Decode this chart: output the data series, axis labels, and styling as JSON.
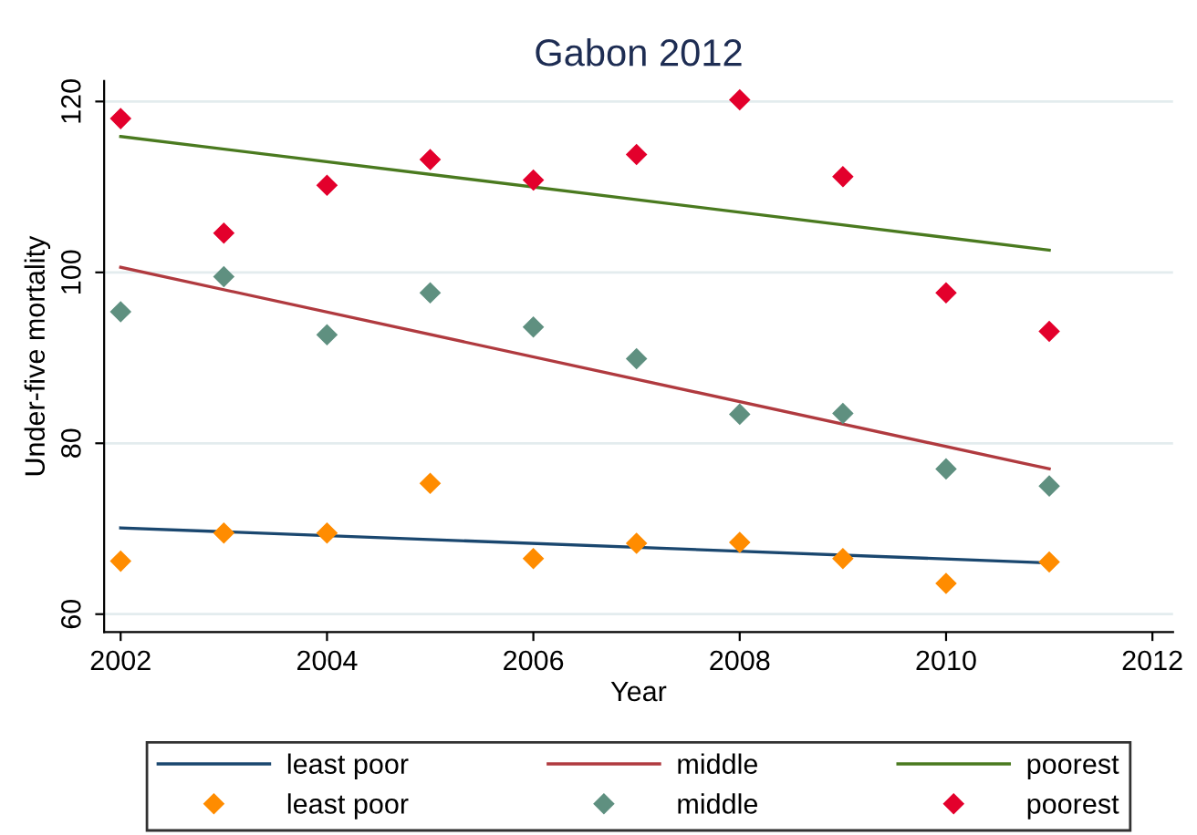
{
  "chart_data": {
    "type": "scatter",
    "title": "Gabon 2012",
    "xlabel": "Year",
    "ylabel": "Under-five mortality",
    "xlim": [
      2001.84,
      2012.2
    ],
    "xticks": [
      2002,
      2004,
      2006,
      2008,
      2010,
      2012
    ],
    "ylim": [
      57.9,
      122.4
    ],
    "yticks": [
      60,
      80,
      100,
      120
    ],
    "grid": "y",
    "legend": "bottom",
    "series": [
      {
        "name": "least poor",
        "type": "line",
        "color": "#1a476f",
        "x": [
          2002,
          2011
        ],
        "values": [
          70.1,
          66.0
        ],
        "marker": "none"
      },
      {
        "name": "middle",
        "type": "line",
        "color": "#b03a3f",
        "x": [
          2002,
          2011
        ],
        "values": [
          100.6,
          77.0
        ],
        "marker": "none"
      },
      {
        "name": "poorest",
        "type": "line",
        "color": "#4a7a1f",
        "x": [
          2002,
          2011
        ],
        "values": [
          115.9,
          102.6
        ],
        "marker": "none"
      },
      {
        "name": "least poor",
        "color": "#ff8c00",
        "marker": "diamond",
        "x": [
          2002,
          2003,
          2004,
          2005,
          2006,
          2007,
          2008,
          2009,
          2010,
          2011
        ],
        "values": [
          66.2,
          69.5,
          69.5,
          75.3,
          66.5,
          68.3,
          68.4,
          66.5,
          63.6,
          66.1
        ]
      },
      {
        "name": "middle",
        "color": "#5f9080",
        "marker": "diamond",
        "x": [
          2002,
          2003,
          2004,
          2005,
          2006,
          2007,
          2008,
          2009,
          2010,
          2011
        ],
        "values": [
          95.4,
          99.5,
          92.7,
          97.6,
          93.6,
          89.9,
          83.4,
          83.5,
          77.0,
          75.0
        ]
      },
      {
        "name": "poorest",
        "color": "#e3002c",
        "marker": "diamond",
        "x": [
          2002,
          2003,
          2004,
          2005,
          2006,
          2007,
          2008,
          2009,
          2010,
          2011
        ],
        "values": [
          118.0,
          104.6,
          110.2,
          113.2,
          110.8,
          113.8,
          120.2,
          111.2,
          97.6,
          93.1
        ]
      }
    ]
  }
}
